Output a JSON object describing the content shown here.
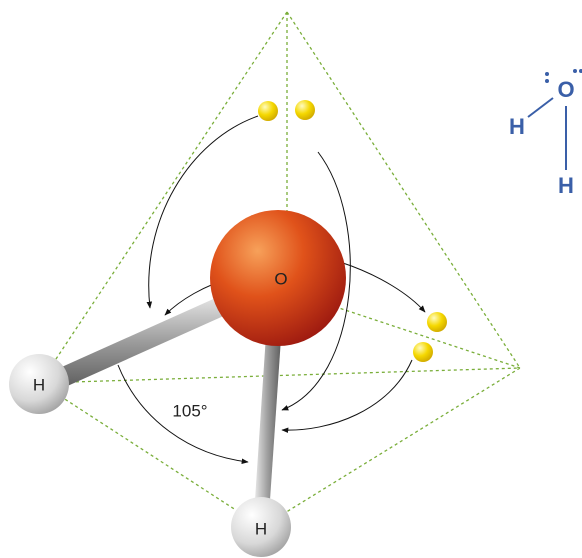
{
  "molecule": {
    "oxygen": "O",
    "hydrogens": [
      "H",
      "H"
    ],
    "angle": "105°"
  },
  "lewis": {
    "oxygen": "O",
    "hydrogens": [
      "H",
      "H"
    ]
  }
}
